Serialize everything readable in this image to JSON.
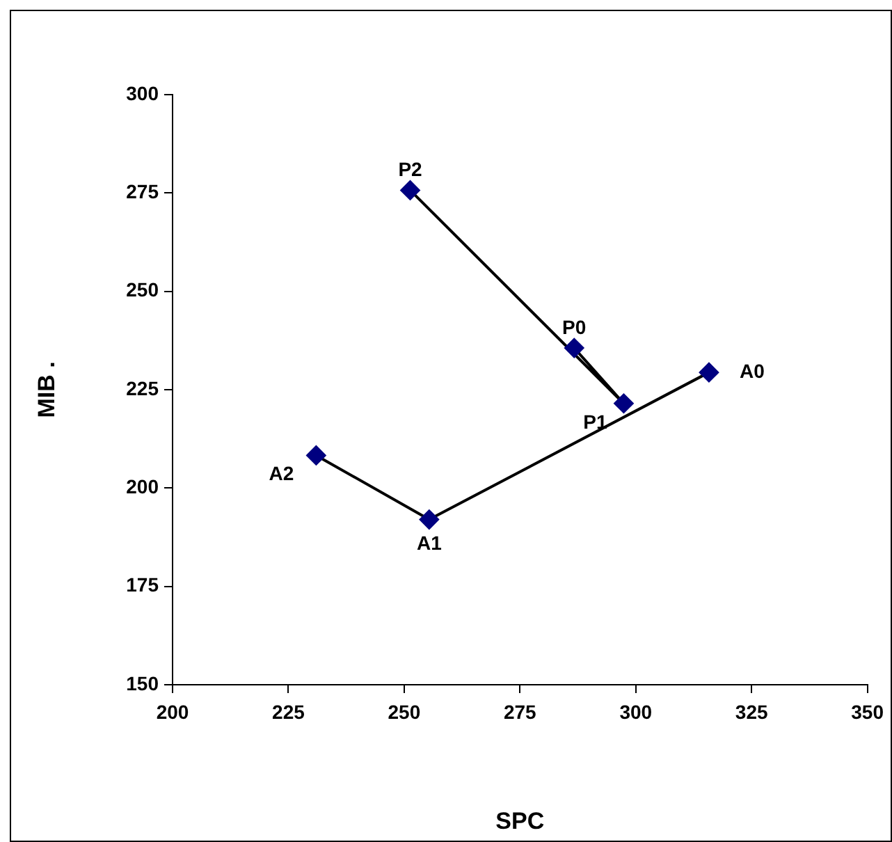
{
  "chart_data": {
    "type": "line",
    "xlabel": "SPC",
    "ylabel": "MIB .",
    "xlim": [
      200,
      350
    ],
    "xticks": [
      200,
      225,
      250,
      275,
      300,
      325,
      350
    ],
    "ylim": [
      150,
      300
    ],
    "yticks": [
      150,
      175,
      200,
      225,
      250,
      275,
      300
    ],
    "grid": false,
    "legend": false,
    "marker": "diamond",
    "line_style": "solid",
    "series": [
      {
        "color": "#000080",
        "x": [
          286.7,
          297.4,
          251.3
        ],
        "values": [
          235.6,
          221.5,
          275.7
        ]
      },
      {
        "color": "#000080",
        "x": [
          315.8,
          255.4,
          231.0
        ],
        "values": [
          229.4,
          192.0,
          208.3
        ]
      }
    ],
    "annotations": [
      {
        "text": "P0",
        "x": 286.7,
        "y": 235.6
      },
      {
        "text": "P1",
        "x": 297.4,
        "y": 221.5
      },
      {
        "text": "P2",
        "x": 251.3,
        "y": 275.7
      },
      {
        "text": "A0",
        "x": 315.8,
        "y": 229.4
      },
      {
        "text": "A1",
        "x": 255.4,
        "y": 192.0
      },
      {
        "text": "A2",
        "x": 231.0,
        "y": 208.3
      }
    ]
  }
}
